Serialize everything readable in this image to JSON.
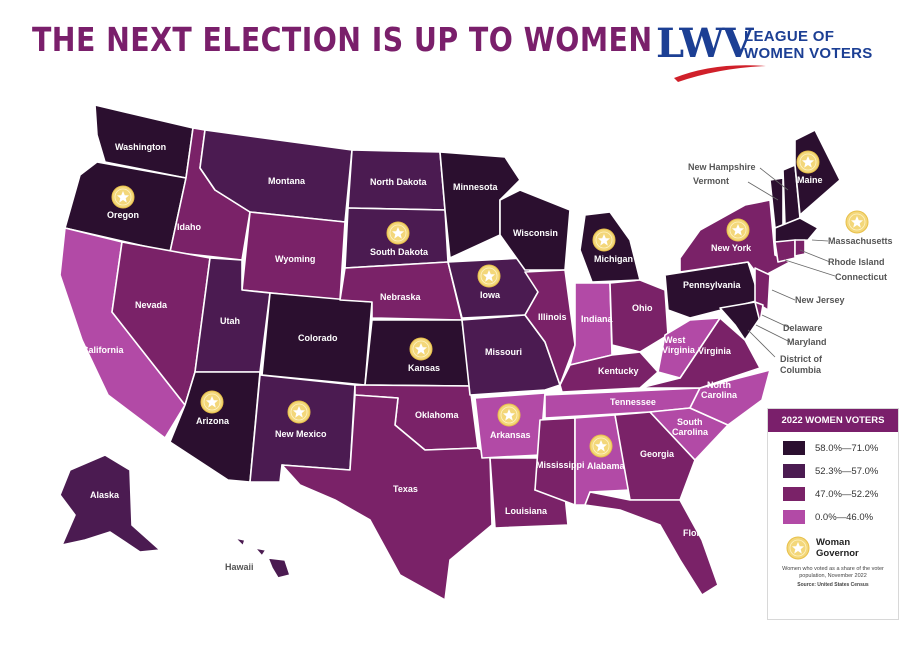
{
  "header": {
    "title": "THE NEXT ELECTION IS UP TO WOMEN"
  },
  "logo": {
    "mark": "LWV",
    "line1": "LEAGUE OF",
    "line2": "WOMEN VOTERS"
  },
  "colors": {
    "c1": "#2b0f2f",
    "c2": "#4b1b51",
    "c3": "#7a2268",
    "c4": "#b24aa6"
  },
  "legend": {
    "title": "2022 WOMEN VOTERS",
    "items": [
      {
        "label": "58.0%—71.0%",
        "color": "#2b0f2f"
      },
      {
        "label": "52.3%—57.0%",
        "color": "#4b1b51"
      },
      {
        "label": "47.0%—52.2%",
        "color": "#7a2268"
      },
      {
        "label": "0.0%—46.0%",
        "color": "#b24aa6"
      }
    ],
    "governor_line1": "Woman",
    "governor_line2": "Governor",
    "note": "Women who voted as a share of the voter population, November 2022",
    "source": "Source: United States Census"
  },
  "states": {
    "washington": "Washington",
    "oregon": "Oregon",
    "california": "California",
    "idaho": "Idaho",
    "nevada": "Nevada",
    "montana": "Montana",
    "wyoming": "Wyoming",
    "utah": "Utah",
    "arizona": "Arizona",
    "colorado": "Colorado",
    "new_mexico": "New Mexico",
    "north_dakota": "North Dakota",
    "south_dakota": "South Dakota",
    "nebraska": "Nebraska",
    "kansas": "Kansas",
    "oklahoma": "Oklahoma",
    "texas": "Texas",
    "minnesota": "Minnesota",
    "iowa": "Iowa",
    "missouri": "Missouri",
    "arkansas": "Arkansas",
    "louisiana": "Louisiana",
    "wisconsin": "Wisconsin",
    "illinois": "Illinois",
    "michigan": "Michigan",
    "indiana": "Indiana",
    "ohio": "Ohio",
    "kentucky": "Kentucky",
    "tennessee": "Tennessee",
    "mississippi": "Mississippi",
    "alabama": "Alabama",
    "georgia": "Georgia",
    "florida": "Florida",
    "south_carolina": "South Carolina",
    "north_carolina": "North Carolina",
    "virginia": "Virginia",
    "west_virginia": "West Virginia",
    "pennsylvania": "Pennsylvania",
    "new_york": "New York",
    "maine": "Maine",
    "vermont": "Vermont",
    "new_hampshire": "New Hampshire",
    "massachusetts": "Massachusetts",
    "rhode_island": "Rhode Island",
    "connecticut": "Connecticut",
    "new_jersey": "New Jersey",
    "delaware": "Delaware",
    "maryland": "Maryland",
    "dc_line1": "District of",
    "dc_line2": "Columbia",
    "alaska": "Alaska",
    "hawaii": "Hawaii"
  }
}
